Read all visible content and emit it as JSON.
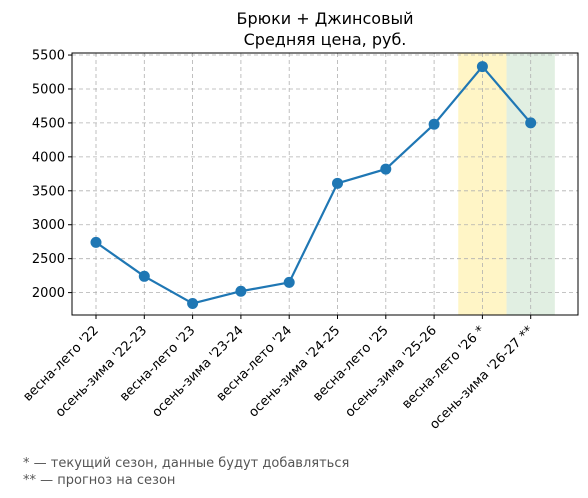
{
  "chart_data": {
    "type": "line",
    "title": "Брюки + Джинсовый",
    "subtitle": "Средняя цена, руб.",
    "xlabel": "",
    "ylabel": "",
    "categories": [
      "весна-лето '22",
      "осень-зима '22-23",
      "весна-лето '23",
      "осень-зима '23-24",
      "весна-лето '24",
      "осень-зима '24-25",
      "весна-лето '25",
      "осень-зима '25-26",
      "весна-лето '26 *",
      "осень-зима '26-27 **"
    ],
    "series": [
      {
        "values": [
          2740,
          2240,
          1840,
          2020,
          2150,
          3610,
          3820,
          4480,
          5330,
          4500
        ]
      }
    ],
    "ylim": [
      1670,
      5530
    ],
    "yticks": [
      2000,
      2500,
      3000,
      3500,
      4000,
      4500,
      5000,
      5500
    ],
    "grid": true,
    "line_color": "#1f77b4",
    "highlight_bands": [
      {
        "category_index": 8,
        "color": "#fff2b3",
        "meaning": "current"
      },
      {
        "category_index": 9,
        "color": "#d7ead8",
        "meaning": "forecast"
      }
    ]
  },
  "footnotes": [
    "* — текущий сезон, данные будут добавляться",
    "** — прогноз на сезон"
  ]
}
